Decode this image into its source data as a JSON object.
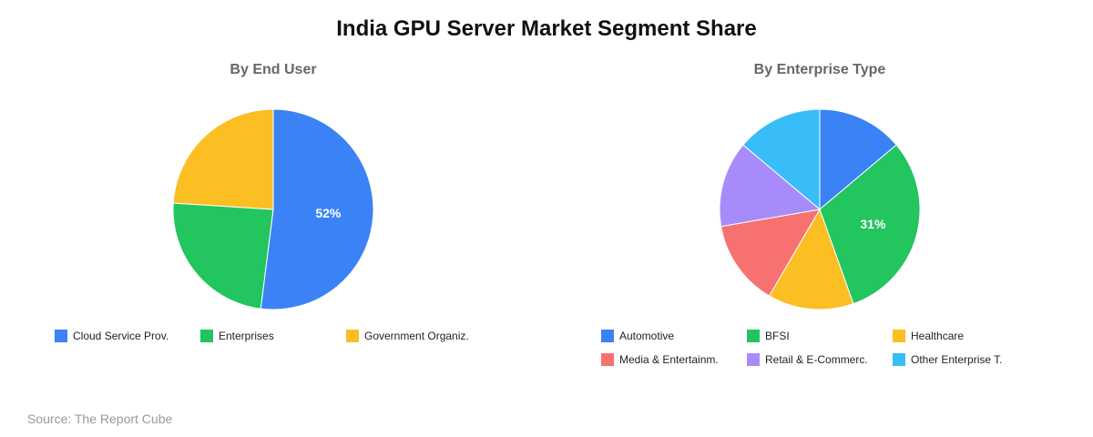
{
  "title": "India GPU Server Market Segment Share",
  "source": "Source: The Report Cube",
  "chart_data": [
    {
      "type": "pie",
      "title": "By End User",
      "categories": [
        "Cloud Service Prov.",
        "Enterprises",
        "Government Organiz."
      ],
      "values": [
        52,
        24,
        24
      ],
      "colors": [
        "#3b82f6",
        "#22c55e",
        "#fbbf24"
      ],
      "labels_shown": [
        "52%",
        "",
        ""
      ],
      "legend": "bottom"
    },
    {
      "type": "pie",
      "title": "By Enterprise Type",
      "categories": [
        "Automotive",
        "BFSI",
        "Healthcare",
        "Media & Entertainm.",
        "Retail & E-Commerc.",
        "Other Enterprise T."
      ],
      "values": [
        14,
        31,
        14,
        14,
        14,
        14
      ],
      "colors": [
        "#3b82f6",
        "#22c55e",
        "#fbbf24",
        "#f87171",
        "#a78bfa",
        "#38bdf8"
      ],
      "labels_shown": [
        "",
        "31%",
        "",
        "",
        "",
        ""
      ],
      "legend": "bottom"
    }
  ]
}
